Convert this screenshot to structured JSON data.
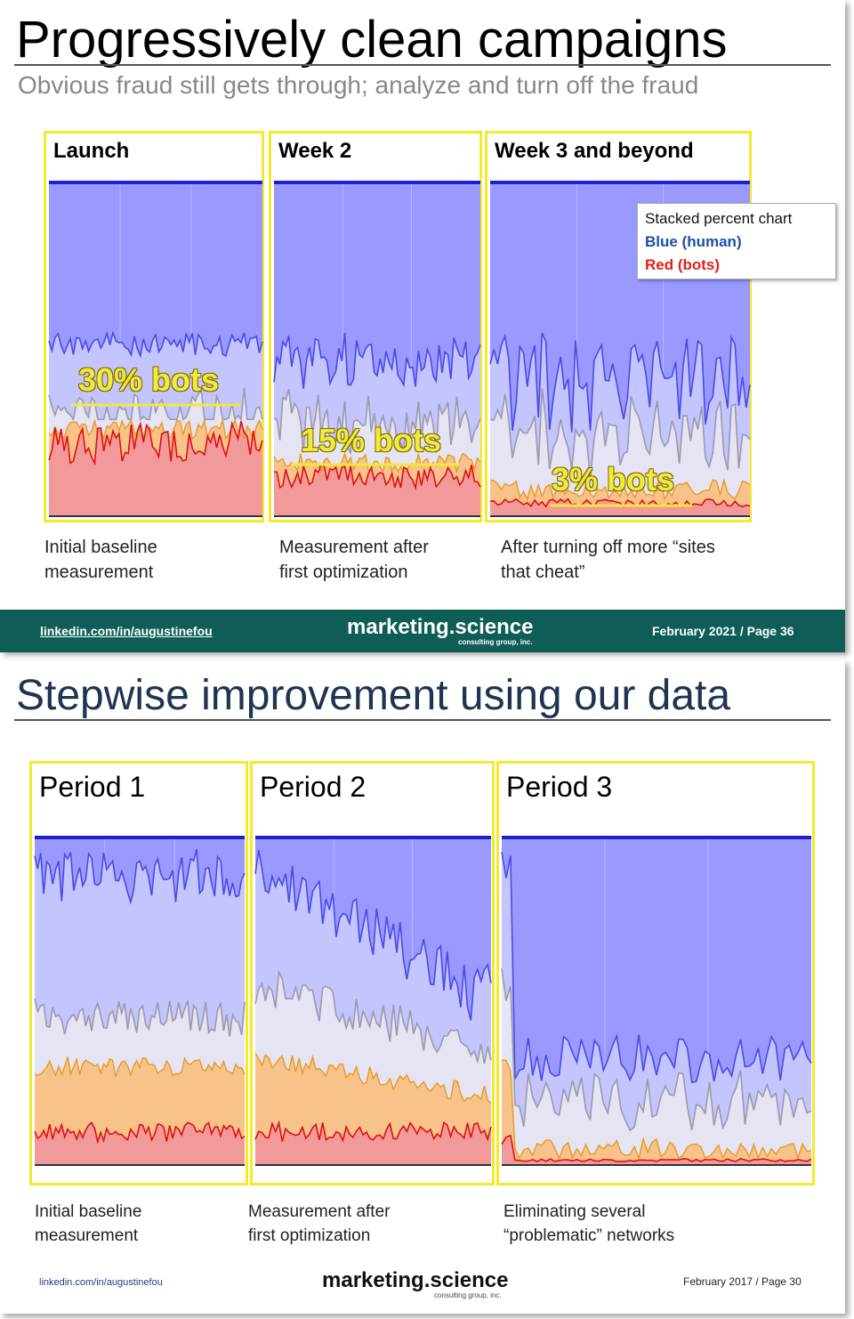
{
  "slide1": {
    "title": "Progressively clean campaigns",
    "subtitle": "Obvious fraud still gets through; analyze and turn off the fraud",
    "legend": {
      "line1": "Stacked percent chart",
      "line2": "Blue (human)",
      "line3": "Red (bots)"
    },
    "footer": {
      "left": "linkedin.com/in/augustinefou",
      "brand": "marketing.science",
      "brand_sub": "consulting group, inc.",
      "right": "February 2021 / Page 36"
    }
  },
  "slide2": {
    "title": "Stepwise improvement using our data",
    "footer": {
      "left": "linkedin.com/in/augustinefou",
      "brand": "marketing.science",
      "brand_sub": "consulting group, inc.",
      "right": "February 2017 / Page 30"
    }
  },
  "colors": {
    "human": "#9999ff",
    "human_line": "#4a4ae8",
    "bots": "#f29a9a",
    "bots_line": "#e01010",
    "panel_border": "#f5ea2a",
    "footer_bg": "#0e5e57"
  },
  "chart_data": [
    {
      "type": "area",
      "title": "Launch",
      "caption_line1": "Initial baseline",
      "caption_line2": "measurement",
      "annotation": "30% bots",
      "series": [
        {
          "name": "Blue (human)",
          "values": [
            0.7
          ]
        },
        {
          "name": "Red (bots)",
          "values": [
            0.3
          ]
        }
      ],
      "ylim": [
        0,
        1
      ]
    },
    {
      "type": "area",
      "title": "Week 2",
      "caption_line1": "Measurement after",
      "caption_line2": "first optimization",
      "annotation": "15% bots",
      "series": [
        {
          "name": "Blue (human)",
          "values": [
            0.85
          ]
        },
        {
          "name": "Red (bots)",
          "values": [
            0.15
          ]
        }
      ],
      "ylim": [
        0,
        1
      ]
    },
    {
      "type": "area",
      "title": "Week 3 and beyond",
      "caption_line1": "After turning off more “sites",
      "caption_line2": "that cheat”",
      "annotation": "3% bots",
      "series": [
        {
          "name": "Blue (human)",
          "values": [
            0.97
          ]
        },
        {
          "name": "Red (bots)",
          "values": [
            0.03
          ]
        }
      ],
      "ylim": [
        0,
        1
      ]
    },
    {
      "type": "area",
      "title": "Period 1",
      "caption_line1": "Initial baseline",
      "caption_line2": "measurement",
      "ylim": [
        0,
        1
      ]
    },
    {
      "type": "area",
      "title": "Period 2",
      "caption_line1": "Measurement after",
      "caption_line2": "first optimization",
      "ylim": [
        0,
        1
      ]
    },
    {
      "type": "area",
      "title": "Period 3",
      "caption_line1": "Eliminating several",
      "caption_line2": "“problematic” networks",
      "ylim": [
        0,
        1
      ]
    }
  ]
}
